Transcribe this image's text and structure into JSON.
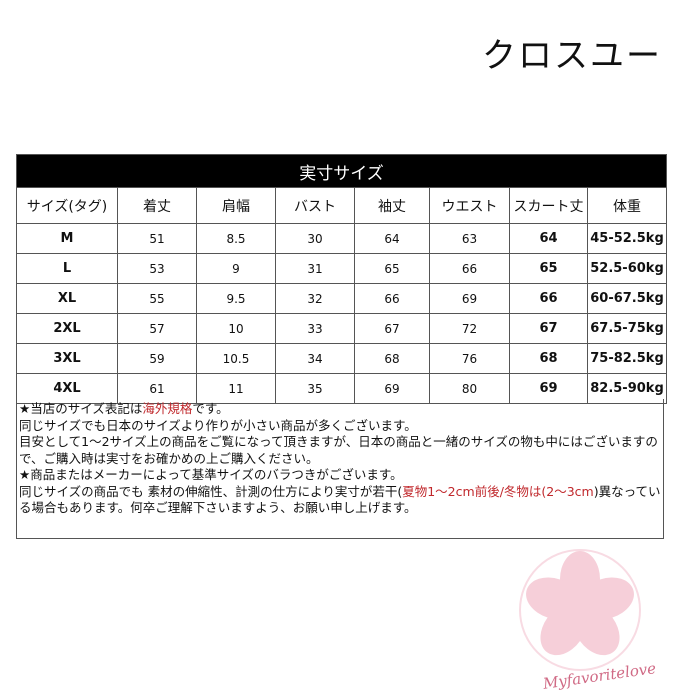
{
  "brand": "クロスユー",
  "table": {
    "title": "実寸サイズ",
    "headers": [
      "サイズ(タグ)",
      "着丈",
      "肩幅",
      "バスト",
      "袖丈",
      "ウエスト",
      "スカート丈",
      "体重"
    ],
    "rows": [
      [
        "M",
        "51",
        "8.5",
        "30",
        "64",
        "63",
        "64",
        "45-52.5kg"
      ],
      [
        "L",
        "53",
        "9",
        "31",
        "65",
        "66",
        "65",
        "52.5-60kg"
      ],
      [
        "XL",
        "55",
        "9.5",
        "32",
        "66",
        "69",
        "66",
        "60-67.5kg"
      ],
      [
        "2XL",
        "57",
        "10",
        "33",
        "67",
        "72",
        "67",
        "67.5-75kg"
      ],
      [
        "3XL",
        "59",
        "10.5",
        "34",
        "68",
        "76",
        "68",
        "75-82.5kg"
      ],
      [
        "4XL",
        "61",
        "11",
        "35",
        "69",
        "80",
        "69",
        "82.5-90kg"
      ]
    ]
  },
  "notes": {
    "l1a": "★当店のサイズ表記は",
    "l1b": "海外規格",
    "l1c": "です。",
    "l2": "同じサイズでも日本のサイズより作りが小さい商品が多くございます。",
    "l3": "目安として1～2サイズ上の商品をご覧になって頂きますが、日本の商品と一緒のサイズの物も中にはございますので、ご購入時は実寸をお確かめの上ご購入ください。",
    "l4": "★商品またはメーカーによって基準サイズのバラつきがございます。",
    "l5a": "同じサイズの商品でも 素材の伸縮性、計測の仕方により実寸が若干(",
    "l5b": "夏物1～2cm前後/冬物は(2～3cm",
    "l5c": ")異なっている場合もあります。何卒ご理解下さいますよう、お願い申し上げます。"
  },
  "watermark": {
    "text": "Myfavoritelove",
    "color": "#f6c9d6"
  }
}
